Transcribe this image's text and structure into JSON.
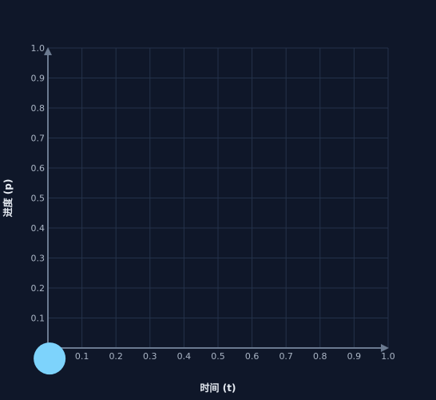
{
  "chart_data": {
    "type": "scatter",
    "title": "",
    "xlabel": "时间 (t)",
    "ylabel": "进度 (p)",
    "xlim": [
      0,
      1
    ],
    "ylim": [
      0,
      1
    ],
    "grid": true,
    "x_ticks": [
      "0.1",
      "0.2",
      "0.3",
      "0.4",
      "0.5",
      "0.6",
      "0.7",
      "0.8",
      "0.9",
      "1.0"
    ],
    "y_ticks": [
      "0",
      "0.1",
      "0.2",
      "0.3",
      "0.4",
      "0.5",
      "0.6",
      "0.7",
      "0.8",
      "0.9",
      "1.0"
    ],
    "series": [
      {
        "points": [
          {
            "x": 0.005,
            "y": -0.035
          }
        ],
        "color": "#7dd3fc"
      }
    ],
    "colors": {
      "background": "#0f1729",
      "grid": "#24324a",
      "axis": "#6b7a90",
      "tick_text": "#a9b4c4",
      "title_text": "#e6ebf2",
      "marker": "#7dd3fc"
    }
  }
}
